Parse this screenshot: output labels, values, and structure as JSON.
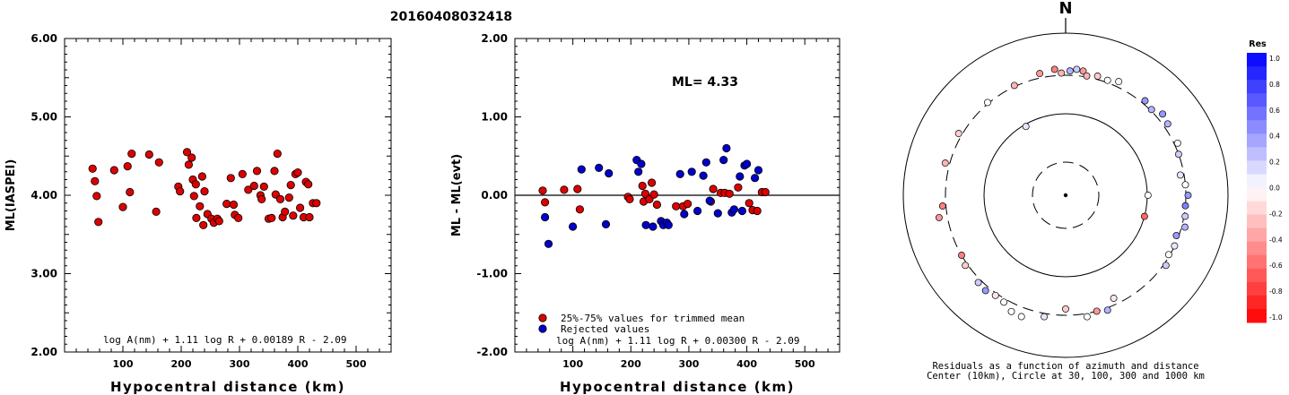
{
  "page_title": "20160408032418",
  "chart_data": [
    {
      "type": "scatter",
      "xlabel": "Hypocentral distance (km)",
      "ylabel": "ML(IASPEI)",
      "xlim": [
        0,
        560
      ],
      "ylim": [
        2.0,
        6.0
      ],
      "x_ticks": [
        "100",
        "200",
        "300",
        "400",
        "500"
      ],
      "y_ticks": [
        "2.00",
        "3.00",
        "4.00",
        "5.00",
        "6.00"
      ],
      "formula": "log A(nm) + 1.11 log R + 0.00189 R - 2.09",
      "series": [
        {
          "color": "#dd0000",
          "points": [
            [
              48,
              4.34
            ],
            [
              52,
              4.18
            ],
            [
              55,
              3.99
            ],
            [
              58,
              3.66
            ],
            [
              85,
              4.32
            ],
            [
              100,
              3.85
            ],
            [
              108,
              4.37
            ],
            [
              112,
              4.04
            ],
            [
              115,
              4.53
            ],
            [
              145,
              4.52
            ],
            [
              157,
              3.79
            ],
            [
              162,
              4.42
            ],
            [
              195,
              4.11
            ],
            [
              198,
              4.05
            ],
            [
              210,
              4.55
            ],
            [
              213,
              4.39
            ],
            [
              218,
              4.48
            ],
            [
              220,
              4.2
            ],
            [
              222,
              3.99
            ],
            [
              225,
              4.14
            ],
            [
              226,
              3.71
            ],
            [
              232,
              3.86
            ],
            [
              236,
              4.24
            ],
            [
              238,
              3.62
            ],
            [
              240,
              4.05
            ],
            [
              245,
              3.76
            ],
            [
              252,
              3.7
            ],
            [
              256,
              3.65
            ],
            [
              262,
              3.7
            ],
            [
              265,
              3.67
            ],
            [
              278,
              3.89
            ],
            [
              285,
              4.22
            ],
            [
              290,
              3.88
            ],
            [
              292,
              3.75
            ],
            [
              298,
              3.71
            ],
            [
              305,
              4.27
            ],
            [
              315,
              4.07
            ],
            [
              325,
              4.12
            ],
            [
              330,
              4.31
            ],
            [
              336,
              4.0
            ],
            [
              338,
              3.95
            ],
            [
              342,
              4.11
            ],
            [
              350,
              3.7
            ],
            [
              355,
              3.71
            ],
            [
              360,
              4.31
            ],
            [
              362,
              4.01
            ],
            [
              365,
              4.53
            ],
            [
              370,
              3.95
            ],
            [
              374,
              3.72
            ],
            [
              378,
              3.79
            ],
            [
              385,
              3.97
            ],
            [
              388,
              4.13
            ],
            [
              392,
              3.74
            ],
            [
              396,
              4.27
            ],
            [
              400,
              4.29
            ],
            [
              404,
              3.84
            ],
            [
              410,
              3.72
            ],
            [
              414,
              4.17
            ],
            [
              418,
              4.14
            ],
            [
              420,
              3.72
            ],
            [
              426,
              3.9
            ],
            [
              432,
              3.9
            ]
          ]
        }
      ]
    },
    {
      "type": "scatter",
      "xlabel": "Hypocentral distance (km)",
      "ylabel": "ML - ML(evt)",
      "xlim": [
        0,
        560
      ],
      "ylim": [
        -2.0,
        2.0
      ],
      "x_ticks": [
        "100",
        "200",
        "300",
        "400",
        "500"
      ],
      "y_ticks": [
        "-2.00",
        "-1.00",
        "0.00",
        "1.00",
        "2.00"
      ],
      "annotation": "ML= 4.33",
      "formula": "log A(nm) + 1.11 log R + 0.00300 R - 2.09",
      "legend": [
        "25%-75% values for trimmed mean",
        "Rejected values"
      ],
      "legend_position": "bottom-left",
      "series": [
        {
          "name": "25%-75% values for trimmed mean",
          "color": "#dd0000",
          "points": [
            [
              48,
              0.06
            ],
            [
              52,
              -0.09
            ],
            [
              85,
              0.07
            ],
            [
              108,
              0.08
            ],
            [
              112,
              -0.18
            ],
            [
              195,
              -0.02
            ],
            [
              198,
              -0.05
            ],
            [
              220,
              0.12
            ],
            [
              222,
              -0.08
            ],
            [
              225,
              0.02
            ],
            [
              232,
              -0.05
            ],
            [
              236,
              0.16
            ],
            [
              240,
              0.01
            ],
            [
              245,
              -0.12
            ],
            [
              278,
              -0.14
            ],
            [
              290,
              -0.14
            ],
            [
              298,
              -0.11
            ],
            [
              338,
              -0.08
            ],
            [
              342,
              0.08
            ],
            [
              355,
              0.03
            ],
            [
              362,
              0.03
            ],
            [
              370,
              0.02
            ],
            [
              385,
              0.1
            ],
            [
              404,
              -0.1
            ],
            [
              410,
              -0.19
            ],
            [
              418,
              -0.2
            ],
            [
              426,
              0.04
            ],
            [
              432,
              0.04
            ]
          ]
        },
        {
          "name": "Rejected values",
          "color": "#0000cc",
          "points": [
            [
              52,
              -0.28
            ],
            [
              58,
              -0.62
            ],
            [
              100,
              -0.4
            ],
            [
              115,
              0.33
            ],
            [
              145,
              0.35
            ],
            [
              157,
              -0.37
            ],
            [
              162,
              0.28
            ],
            [
              210,
              0.45
            ],
            [
              213,
              0.3
            ],
            [
              218,
              0.4
            ],
            [
              226,
              -0.38
            ],
            [
              238,
              -0.4
            ],
            [
              252,
              -0.33
            ],
            [
              256,
              -0.38
            ],
            [
              262,
              -0.35
            ],
            [
              265,
              -0.38
            ],
            [
              285,
              0.27
            ],
            [
              292,
              -0.24
            ],
            [
              305,
              0.3
            ],
            [
              315,
              -0.2
            ],
            [
              325,
              0.25
            ],
            [
              330,
              0.42
            ],
            [
              336,
              -0.07
            ],
            [
              350,
              -0.23
            ],
            [
              360,
              0.45
            ],
            [
              365,
              0.6
            ],
            [
              374,
              -0.22
            ],
            [
              378,
              -0.18
            ],
            [
              388,
              0.24
            ],
            [
              392,
              -0.2
            ],
            [
              396,
              0.38
            ],
            [
              400,
              0.4
            ],
            [
              414,
              0.22
            ],
            [
              420,
              0.32
            ]
          ]
        }
      ]
    },
    {
      "type": "scatter",
      "subtype": "polar",
      "direction_label": "N",
      "caption_lines": [
        "Residuals as a function of azimuth and distance",
        "Center (10km), Circle at 30, 100, 300 and 1000 km"
      ],
      "rings_km": [
        30,
        100,
        300,
        1000
      ],
      "ring_styles": [
        "dashed",
        "solid",
        "dashed",
        "solid"
      ],
      "colorbar_title": "Res",
      "colorbar_range": [
        -1.0,
        1.0
      ],
      "colorbar_ticks": [
        "1.0",
        "0.8",
        "0.6",
        "0.4",
        "0.2",
        "0.0",
        "-0.2",
        "-0.4",
        "-0.6",
        "-0.8",
        "-1.0"
      ],
      "points_az_dist_res": [
        [
          105,
          100,
          -0.6
        ],
        [
          330,
          95,
          0.1
        ],
        [
          90,
          102,
          0.0
        ],
        [
          155,
          250,
          -0.1
        ],
        [
          300,
          330,
          -0.2
        ],
        [
          320,
          310,
          0.0
        ],
        [
          335,
          310,
          -0.3
        ],
        [
          348,
          340,
          -0.4
        ],
        [
          355,
          360,
          -0.5
        ],
        [
          358,
          320,
          -0.3
        ],
        [
          2,
          340,
          0.3
        ],
        [
          5,
          360,
          0.2
        ],
        [
          8,
          350,
          -0.4
        ],
        [
          10,
          310,
          -0.3
        ],
        [
          15,
          330,
          -0.2
        ],
        [
          20,
          320,
          0.0
        ],
        [
          25,
          350,
          0.0
        ],
        [
          40,
          330,
          0.4
        ],
        [
          45,
          310,
          0.3
        ],
        [
          50,
          360,
          0.4
        ],
        [
          55,
          340,
          0.3
        ],
        [
          65,
          330,
          0.0
        ],
        [
          70,
          300,
          0.2
        ],
        [
          80,
          270,
          0.1
        ],
        [
          85,
          300,
          0.0
        ],
        [
          90,
          320,
          0.4
        ],
        [
          95,
          300,
          0.5
        ],
        [
          100,
          310,
          0.2
        ],
        [
          105,
          330,
          0.3
        ],
        [
          110,
          280,
          0.4
        ],
        [
          115,
          300,
          0.1
        ],
        [
          120,
          290,
          0.0
        ],
        [
          125,
          320,
          0.2
        ],
        [
          160,
          320,
          0.3
        ],
        [
          165,
          300,
          -0.4
        ],
        [
          170,
          330,
          0.0
        ],
        [
          180,
          250,
          -0.2
        ],
        [
          190,
          330,
          0.1
        ],
        [
          200,
          390,
          0.0
        ],
        [
          205,
          380,
          0.0
        ],
        [
          210,
          330,
          0.0
        ],
        [
          215,
          320,
          -0.1
        ],
        [
          220,
          340,
          0.4
        ],
        [
          225,
          330,
          0.2
        ],
        [
          235,
          320,
          -0.2
        ],
        [
          240,
          300,
          -0.5
        ],
        [
          260,
          380,
          -0.4
        ],
        [
          265,
          330,
          -0.5
        ],
        [
          285,
          340,
          -0.3
        ]
      ]
    }
  ]
}
